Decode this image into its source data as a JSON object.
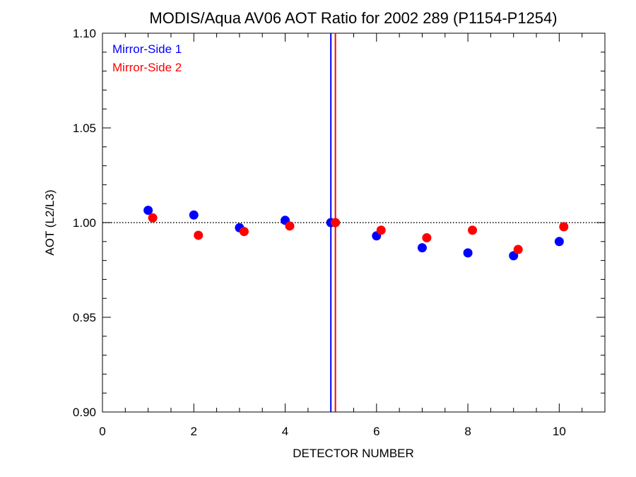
{
  "chart_data": {
    "type": "scatter",
    "title": "MODIS/Aqua AV06 AOT Ratio for 2002 289 (P1154-P1254)",
    "xlabel": "DETECTOR NUMBER",
    "ylabel": "AOT (L2/L3)",
    "xlim": [
      0,
      11
    ],
    "ylim": [
      0.9,
      1.1
    ],
    "x_ticks": [
      0,
      2,
      4,
      6,
      8,
      10
    ],
    "x_tick_labels": [
      "0",
      "2",
      "4",
      "6",
      "8",
      "10"
    ],
    "x_minor_step": 0.5,
    "y_ticks": [
      0.9,
      0.95,
      1.0,
      1.05,
      1.1
    ],
    "y_tick_labels": [
      "0.90",
      "0.95",
      "1.00",
      "1.05",
      "1.10"
    ],
    "y_minor_step": 0.01,
    "reference_line": {
      "y": 1.0,
      "style": "dotted",
      "color": "#000000"
    },
    "vertical_lines": [
      {
        "x": 5.0,
        "color": "#0000ff"
      },
      {
        "x": 5.1,
        "color": "#ff0000"
      }
    ],
    "series": [
      {
        "name": "Mirror-Side 1",
        "color": "#0000ff",
        "x": [
          1,
          2,
          3,
          4,
          5,
          6,
          7,
          8,
          9,
          10
        ],
        "y": [
          1.0065,
          1.004,
          0.9973,
          1.0012,
          1.0,
          0.993,
          0.9867,
          0.984,
          0.9825,
          0.99
        ]
      },
      {
        "name": "Mirror-Side 2",
        "color": "#ff0000",
        "x": [
          1.1,
          2.1,
          3.1,
          4.1,
          5.1,
          6.1,
          7.1,
          8.1,
          9.1,
          10.1
        ],
        "y": [
          1.0025,
          0.9933,
          0.9953,
          0.9982,
          1.0,
          0.996,
          0.992,
          0.996,
          0.9858,
          0.9978
        ]
      }
    ],
    "legend_position": "top-left",
    "grid": false
  }
}
